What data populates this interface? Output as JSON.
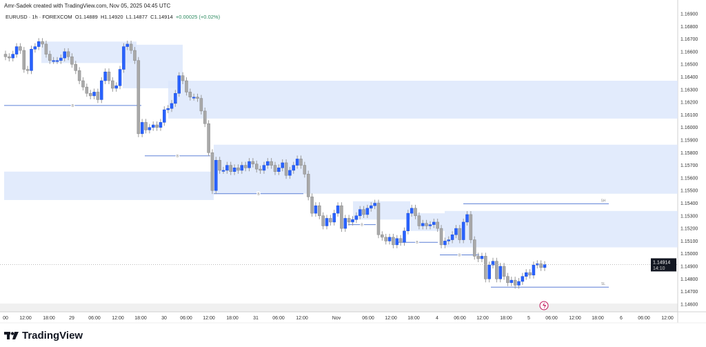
{
  "header": {
    "credit": "Amr-Sadek created with TradingView.com, Nov 05, 2025 04:45 UTC",
    "symbol": "EURUSD · 1h · FOREXCOM",
    "open": "O1.14889",
    "high": "H1.14920",
    "low": "L1.14877",
    "close": "C1.14914",
    "change": "+0.00025 (+0.02%)"
  },
  "brand": "TradingView",
  "colors": {
    "up": "#2962ff",
    "down": "#a9a9a9",
    "zone": "#dbe6fb",
    "line": "#5b7fd6",
    "alert": "#c2185b"
  },
  "chart_data": {
    "type": "candlestick",
    "symbol": "EURUSD",
    "interval": "1h",
    "ylim": [
      1.1455,
      1.1695
    ],
    "y_ticks": [
      "1.16900",
      "1.16800",
      "1.16700",
      "1.16600",
      "1.16500",
      "1.16400",
      "1.16300",
      "1.16200",
      "1.16100",
      "1.16000",
      "1.15900",
      "1.15800",
      "1.15700",
      "1.15600",
      "1.15500",
      "1.15400",
      "1.15300",
      "1.15200",
      "1.15100",
      "1.15000",
      "1.14900",
      "1.14800",
      "1.14700",
      "1.14600"
    ],
    "x_ticks": [
      "00",
      "12:00",
      "18:00",
      "29",
      "06:00",
      "12:00",
      "18:00",
      "30",
      "06:00",
      "12:00",
      "18:00",
      "31",
      "06:00",
      "12:00",
      "Nov",
      "06:00",
      "12:00",
      "18:00",
      "4",
      "06:00",
      "12:00",
      "18:00",
      "5",
      "06:00",
      "12:00",
      "18:00",
      "6",
      "06:00",
      "12:00"
    ],
    "close": [
      1.1656,
      1.1655,
      1.1658,
      1.1664,
      1.1661,
      1.1646,
      1.1645,
      1.1662,
      1.1664,
      1.1668,
      1.1666,
      1.1658,
      1.1653,
      1.1653,
      1.1653,
      1.1655,
      1.166,
      1.1656,
      1.165,
      1.1645,
      1.1637,
      1.1632,
      1.1627,
      1.1625,
      1.1628,
      1.1622,
      1.1637,
      1.1644,
      1.1637,
      1.1631,
      1.1633,
      1.1646,
      1.1664,
      1.1666,
      1.1661,
      1.1653,
      1.1595,
      1.1604,
      1.1598,
      1.16,
      1.1602,
      1.16,
      1.1604,
      1.1614,
      1.1615,
      1.1619,
      1.1627,
      1.1641,
      1.1637,
      1.1628,
      1.1624,
      1.1624,
      1.1623,
      1.1613,
      1.1603,
      1.158,
      1.155,
      1.1574,
      1.1566,
      1.1566,
      1.157,
      1.1565,
      1.1568,
      1.1566,
      1.157,
      1.1568,
      1.1573,
      1.1571,
      1.1567,
      1.1566,
      1.157,
      1.1573,
      1.157,
      1.1565,
      1.1568,
      1.1572,
      1.1562,
      1.1566,
      1.157,
      1.1575,
      1.157,
      1.1563,
      1.1545,
      1.1532,
      1.1538,
      1.153,
      1.1522,
      1.1528,
      1.1525,
      1.1532,
      1.1538,
      1.152,
      1.1528,
      1.1525,
      1.1527,
      1.153,
      1.1535,
      1.1531,
      1.1536,
      1.1538,
      1.154,
      1.1515,
      1.1513,
      1.151,
      1.1513,
      1.1507,
      1.1512,
      1.1509,
      1.1518,
      1.1532,
      1.1536,
      1.153,
      1.1522,
      1.1524,
      1.1522,
      1.1523,
      1.1525,
      1.152,
      1.1507,
      1.151,
      1.1511,
      1.1515,
      1.152,
      1.1511,
      1.1525,
      1.1531,
      1.1511,
      1.1498,
      1.1496,
      1.1498,
      1.148,
      1.1491,
      1.1494,
      1.148,
      1.149,
      1.1482,
      1.1477,
      1.1479,
      1.1475,
      1.1478,
      1.1482,
      1.1485,
      1.1483,
      1.1491,
      1.1492,
      1.1489,
      1.14914
    ],
    "zones": [
      [
        1.1668,
        1.1651
      ],
      [
        1.16655,
        1.1631
      ],
      [
        1.1637,
        1.1607
      ],
      [
        1.15863,
        1.15475
      ],
      [
        1.1565,
        1.15425
      ],
      [
        1.15415,
        1.1527
      ],
      [
        1.1532,
        1.1518
      ],
      [
        1.15338,
        1.1505
      ]
    ],
    "levels": [
      {
        "label": "B",
        "price": 1.16174
      },
      {
        "label": "B",
        "price": 1.15775
      },
      {
        "label": "B",
        "price": 1.15475
      },
      {
        "label": "B",
        "price": 1.1523
      },
      {
        "label": "B",
        "price": 1.1509
      },
      {
        "label": "B",
        "price": 1.1499
      },
      {
        "label": "SH",
        "price": 1.15395
      },
      {
        "label": "SL",
        "price": 1.14735
      }
    ],
    "current_price": "1.14914",
    "countdown": "14:10"
  }
}
